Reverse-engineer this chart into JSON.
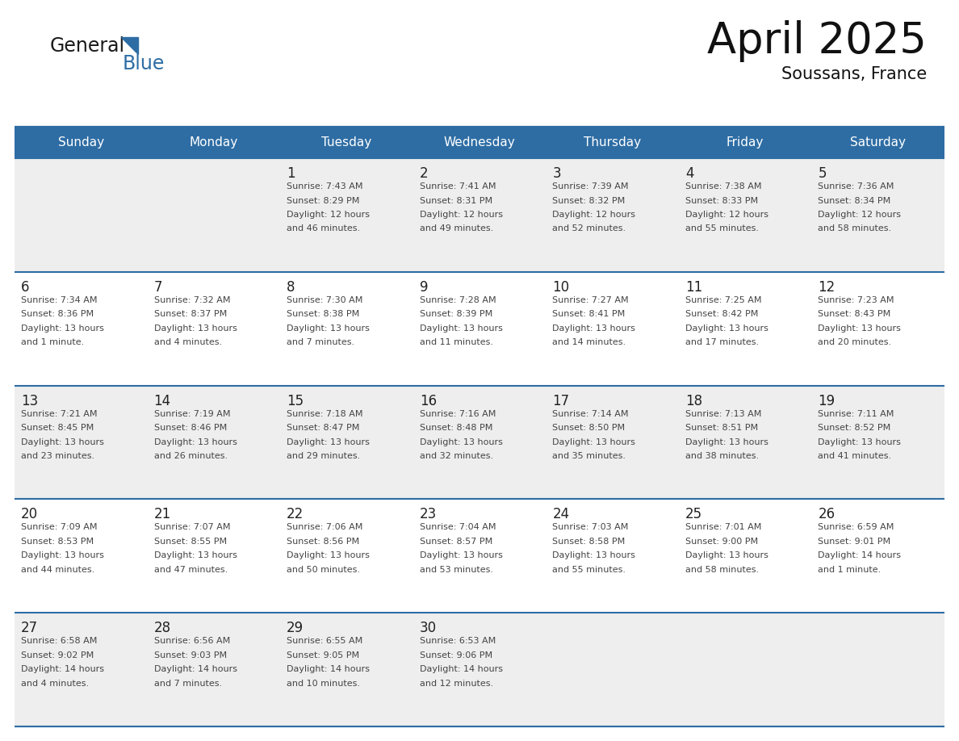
{
  "title": "April 2025",
  "subtitle": "Soussans, France",
  "header_bg_color": "#2E6DA4",
  "header_text_color": "#FFFFFF",
  "cell_bg_even": "#EEEEEE",
  "cell_bg_odd": "#FFFFFF",
  "row_border_color": "#2E6DA4",
  "text_color": "#444444",
  "day_num_color": "#222222",
  "days_of_week": [
    "Sunday",
    "Monday",
    "Tuesday",
    "Wednesday",
    "Thursday",
    "Friday",
    "Saturday"
  ],
  "calendar_data": [
    [
      {
        "day": "",
        "info": ""
      },
      {
        "day": "",
        "info": ""
      },
      {
        "day": "1",
        "info": "Sunrise: 7:43 AM\nSunset: 8:29 PM\nDaylight: 12 hours\nand 46 minutes."
      },
      {
        "day": "2",
        "info": "Sunrise: 7:41 AM\nSunset: 8:31 PM\nDaylight: 12 hours\nand 49 minutes."
      },
      {
        "day": "3",
        "info": "Sunrise: 7:39 AM\nSunset: 8:32 PM\nDaylight: 12 hours\nand 52 minutes."
      },
      {
        "day": "4",
        "info": "Sunrise: 7:38 AM\nSunset: 8:33 PM\nDaylight: 12 hours\nand 55 minutes."
      },
      {
        "day": "5",
        "info": "Sunrise: 7:36 AM\nSunset: 8:34 PM\nDaylight: 12 hours\nand 58 minutes."
      }
    ],
    [
      {
        "day": "6",
        "info": "Sunrise: 7:34 AM\nSunset: 8:36 PM\nDaylight: 13 hours\nand 1 minute."
      },
      {
        "day": "7",
        "info": "Sunrise: 7:32 AM\nSunset: 8:37 PM\nDaylight: 13 hours\nand 4 minutes."
      },
      {
        "day": "8",
        "info": "Sunrise: 7:30 AM\nSunset: 8:38 PM\nDaylight: 13 hours\nand 7 minutes."
      },
      {
        "day": "9",
        "info": "Sunrise: 7:28 AM\nSunset: 8:39 PM\nDaylight: 13 hours\nand 11 minutes."
      },
      {
        "day": "10",
        "info": "Sunrise: 7:27 AM\nSunset: 8:41 PM\nDaylight: 13 hours\nand 14 minutes."
      },
      {
        "day": "11",
        "info": "Sunrise: 7:25 AM\nSunset: 8:42 PM\nDaylight: 13 hours\nand 17 minutes."
      },
      {
        "day": "12",
        "info": "Sunrise: 7:23 AM\nSunset: 8:43 PM\nDaylight: 13 hours\nand 20 minutes."
      }
    ],
    [
      {
        "day": "13",
        "info": "Sunrise: 7:21 AM\nSunset: 8:45 PM\nDaylight: 13 hours\nand 23 minutes."
      },
      {
        "day": "14",
        "info": "Sunrise: 7:19 AM\nSunset: 8:46 PM\nDaylight: 13 hours\nand 26 minutes."
      },
      {
        "day": "15",
        "info": "Sunrise: 7:18 AM\nSunset: 8:47 PM\nDaylight: 13 hours\nand 29 minutes."
      },
      {
        "day": "16",
        "info": "Sunrise: 7:16 AM\nSunset: 8:48 PM\nDaylight: 13 hours\nand 32 minutes."
      },
      {
        "day": "17",
        "info": "Sunrise: 7:14 AM\nSunset: 8:50 PM\nDaylight: 13 hours\nand 35 minutes."
      },
      {
        "day": "18",
        "info": "Sunrise: 7:13 AM\nSunset: 8:51 PM\nDaylight: 13 hours\nand 38 minutes."
      },
      {
        "day": "19",
        "info": "Sunrise: 7:11 AM\nSunset: 8:52 PM\nDaylight: 13 hours\nand 41 minutes."
      }
    ],
    [
      {
        "day": "20",
        "info": "Sunrise: 7:09 AM\nSunset: 8:53 PM\nDaylight: 13 hours\nand 44 minutes."
      },
      {
        "day": "21",
        "info": "Sunrise: 7:07 AM\nSunset: 8:55 PM\nDaylight: 13 hours\nand 47 minutes."
      },
      {
        "day": "22",
        "info": "Sunrise: 7:06 AM\nSunset: 8:56 PM\nDaylight: 13 hours\nand 50 minutes."
      },
      {
        "day": "23",
        "info": "Sunrise: 7:04 AM\nSunset: 8:57 PM\nDaylight: 13 hours\nand 53 minutes."
      },
      {
        "day": "24",
        "info": "Sunrise: 7:03 AM\nSunset: 8:58 PM\nDaylight: 13 hours\nand 55 minutes."
      },
      {
        "day": "25",
        "info": "Sunrise: 7:01 AM\nSunset: 9:00 PM\nDaylight: 13 hours\nand 58 minutes."
      },
      {
        "day": "26",
        "info": "Sunrise: 6:59 AM\nSunset: 9:01 PM\nDaylight: 14 hours\nand 1 minute."
      }
    ],
    [
      {
        "day": "27",
        "info": "Sunrise: 6:58 AM\nSunset: 9:02 PM\nDaylight: 14 hours\nand 4 minutes."
      },
      {
        "day": "28",
        "info": "Sunrise: 6:56 AM\nSunset: 9:03 PM\nDaylight: 14 hours\nand 7 minutes."
      },
      {
        "day": "29",
        "info": "Sunrise: 6:55 AM\nSunset: 9:05 PM\nDaylight: 14 hours\nand 10 minutes."
      },
      {
        "day": "30",
        "info": "Sunrise: 6:53 AM\nSunset: 9:06 PM\nDaylight: 14 hours\nand 12 minutes."
      },
      {
        "day": "",
        "info": ""
      },
      {
        "day": "",
        "info": ""
      },
      {
        "day": "",
        "info": ""
      }
    ]
  ],
  "logo_general_color": "#1a1a1a",
  "logo_blue_color": "#2E6DA4",
  "logo_triangle_color": "#2E6DA4"
}
